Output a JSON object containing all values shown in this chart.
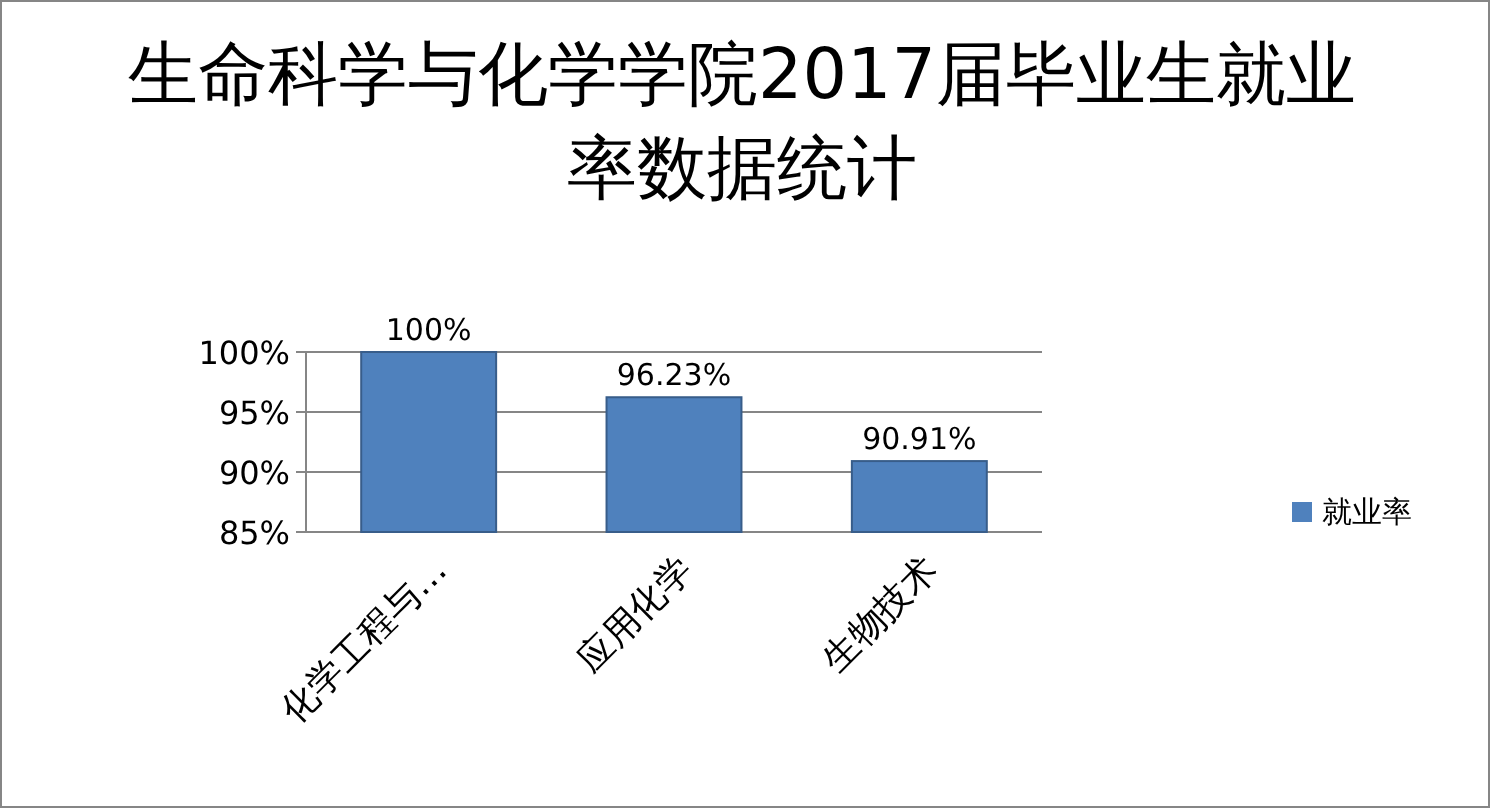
{
  "chart_data": {
    "type": "bar",
    "title": "生命科学与化学学院2017届毕业生就业率数据统计",
    "categories": [
      "化学工程与…",
      "应用化学",
      "生物技术"
    ],
    "series": [
      {
        "name": "就业率",
        "color": "#4f81bd",
        "values": [
          100,
          96.23,
          90.91
        ],
        "value_labels": [
          "100%",
          "96.23%",
          "90.91%"
        ]
      }
    ],
    "ylim": [
      85,
      100
    ],
    "yticks": [
      {
        "value": 85,
        "label": "85%"
      },
      {
        "value": 90,
        "label": "90%"
      },
      {
        "value": 95,
        "label": "95%"
      },
      {
        "value": 100,
        "label": "100%"
      }
    ],
    "grid": "y",
    "legend": "right"
  }
}
